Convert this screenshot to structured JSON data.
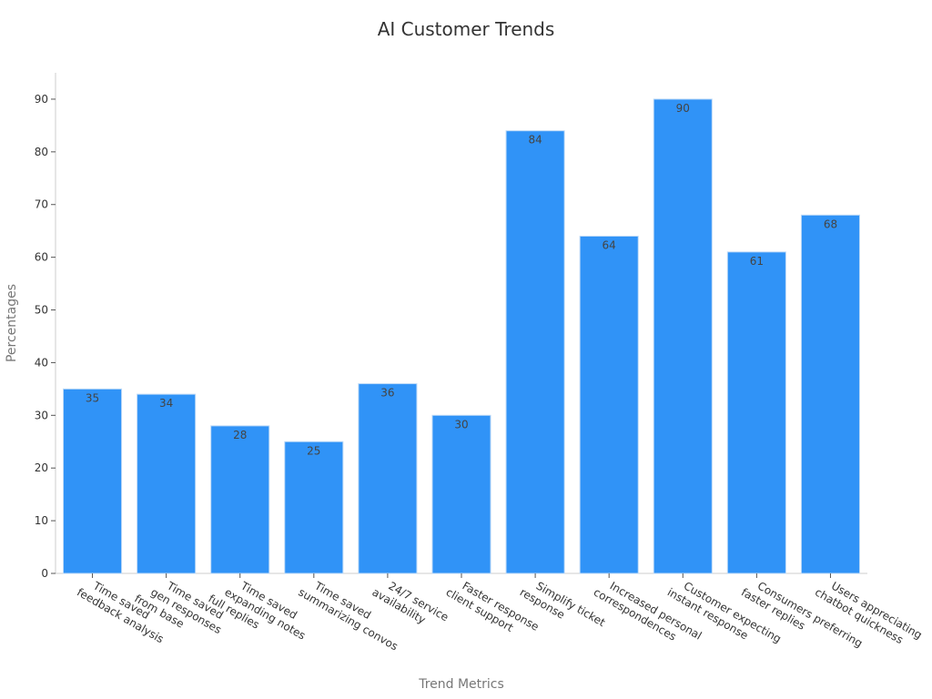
{
  "chart_data": {
    "type": "bar",
    "title": "AI Customer Trends",
    "xlabel": "Trend Metrics",
    "ylabel": "Percentages",
    "ylim": [
      0,
      95
    ],
    "yticks": [
      0,
      10,
      20,
      30,
      40,
      50,
      60,
      70,
      80,
      90
    ],
    "grid": false,
    "bar_color": "#3093f7",
    "categories": [
      [
        "Time saved",
        "feedback analysis"
      ],
      [
        "Time saved",
        "gen responses",
        "from base"
      ],
      [
        "Time saved",
        "expanding notes",
        "full replies"
      ],
      [
        "Time saved",
        "summarizing convos"
      ],
      [
        "24/7 service",
        "availability"
      ],
      [
        "Faster response",
        "client support"
      ],
      [
        "Simplify ticket",
        "response"
      ],
      [
        "Increased personal",
        "correspondences"
      ],
      [
        "Customer expecting",
        "instant response"
      ],
      [
        "Consumers preferring",
        "faster replies"
      ],
      [
        "Users appreciating",
        "chatbot quickness"
      ]
    ],
    "values": [
      35,
      34,
      28,
      25,
      36,
      30,
      84,
      64,
      90,
      61,
      68
    ]
  }
}
